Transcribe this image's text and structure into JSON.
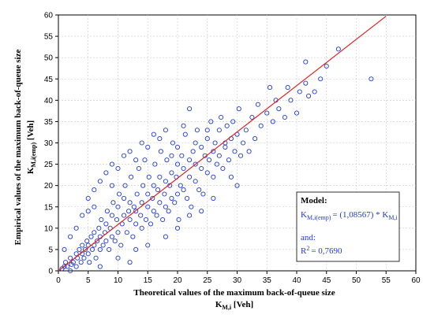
{
  "chart_data": {
    "type": "scatter",
    "xlabel": "Theoretical values of the maximum back-of-queue size",
    "xlabel_symbol": "K",
    "xlabel_subscript": "M,i",
    "xlabel_unit": "[Veh]",
    "ylabel": "Empirical values of the maximum back-of-queue size",
    "ylabel_symbol": "K",
    "ylabel_subscript": "M,i(emp)",
    "ylabel_unit": "[Veh]",
    "xlim": [
      0,
      60
    ],
    "ylim": [
      0,
      60
    ],
    "x_ticks": [
      "0",
      "5",
      "10",
      "15",
      "20",
      "25",
      "30",
      "35",
      "40",
      "45",
      "50",
      "55",
      "60"
    ],
    "y_ticks": [
      "0",
      "5",
      "10",
      "15",
      "20",
      "25",
      "30",
      "35",
      "40",
      "45",
      "50",
      "55",
      "60"
    ],
    "grid": true,
    "marker_color": "#1f3bd6",
    "fit_line_color": "#e02020",
    "fit_line": {
      "slope": 1.08567,
      "x": [
        0,
        55
      ]
    },
    "points": [
      [
        0.6,
        0.5
      ],
      [
        1,
        1
      ],
      [
        1.2,
        2
      ],
      [
        1.5,
        1
      ],
      [
        2,
        0
      ],
      [
        2,
        3
      ],
      [
        2.2,
        1.5
      ],
      [
        2.5,
        2
      ],
      [
        3,
        4
      ],
      [
        3,
        1
      ],
      [
        3.2,
        3
      ],
      [
        3.5,
        5
      ],
      [
        3.8,
        2
      ],
      [
        4,
        4
      ],
      [
        4,
        6
      ],
      [
        4.3,
        3
      ],
      [
        4.5,
        5
      ],
      [
        4.8,
        7
      ],
      [
        5,
        4
      ],
      [
        5,
        6
      ],
      [
        5.2,
        2
      ],
      [
        5.5,
        8
      ],
      [
        5.7,
        5
      ],
      [
        6,
        6
      ],
      [
        6,
        9
      ],
      [
        6.3,
        3
      ],
      [
        6.5,
        7
      ],
      [
        6.8,
        10
      ],
      [
        7,
        5
      ],
      [
        7,
        8
      ],
      [
        7.2,
        12
      ],
      [
        7.5,
        6
      ],
      [
        7.8,
        9
      ],
      [
        8,
        7
      ],
      [
        8,
        11
      ],
      [
        8.2,
        14
      ],
      [
        8.5,
        5
      ],
      [
        8.7,
        10
      ],
      [
        9,
        8
      ],
      [
        9,
        13
      ],
      [
        9.2,
        16
      ],
      [
        9.5,
        7
      ],
      [
        9.8,
        12
      ],
      [
        10,
        9
      ],
      [
        10,
        15
      ],
      [
        10.2,
        18
      ],
      [
        10.5,
        6
      ],
      [
        10.7,
        11
      ],
      [
        11,
        13
      ],
      [
        11,
        17
      ],
      [
        11.2,
        20
      ],
      [
        11.5,
        9
      ],
      [
        11.8,
        14
      ],
      [
        12,
        12
      ],
      [
        12,
        16
      ],
      [
        12.2,
        22
      ],
      [
        12.5,
        8
      ],
      [
        12.7,
        15
      ],
      [
        13,
        11
      ],
      [
        13,
        14
      ],
      [
        13.2,
        18
      ],
      [
        13.5,
        24
      ],
      [
        13.8,
        13
      ],
      [
        14,
        10
      ],
      [
        14,
        16
      ],
      [
        14.2,
        20
      ],
      [
        14.5,
        26
      ],
      [
        14.7,
        12
      ],
      [
        15,
        15
      ],
      [
        15,
        18
      ],
      [
        15.2,
        22
      ],
      [
        15.5,
        11
      ],
      [
        15.8,
        17
      ],
      [
        16,
        14
      ],
      [
        16,
        20
      ],
      [
        16.2,
        25
      ],
      [
        16.5,
        13
      ],
      [
        16.7,
        19
      ],
      [
        17,
        16
      ],
      [
        17,
        22
      ],
      [
        17.2,
        28
      ],
      [
        17.5,
        12
      ],
      [
        17.8,
        18
      ],
      [
        18,
        15
      ],
      [
        18,
        21
      ],
      [
        18.2,
        26
      ],
      [
        18.5,
        14
      ],
      [
        18.7,
        20
      ],
      [
        19,
        17
      ],
      [
        19,
        23
      ],
      [
        19.2,
        30
      ],
      [
        19.5,
        16
      ],
      [
        19.8,
        22
      ],
      [
        20,
        18
      ],
      [
        20,
        25
      ],
      [
        20.2,
        12
      ],
      [
        20.5,
        20
      ],
      [
        20.7,
        27
      ],
      [
        21,
        19
      ],
      [
        21,
        24
      ],
      [
        21.3,
        32
      ],
      [
        21.6,
        17
      ],
      [
        22,
        22
      ],
      [
        22,
        26
      ],
      [
        22.3,
        15
      ],
      [
        22.6,
        28
      ],
      [
        23,
        21
      ],
      [
        23,
        25
      ],
      [
        23.3,
        33
      ],
      [
        23.6,
        19
      ],
      [
        24,
        24
      ],
      [
        24,
        29
      ],
      [
        24.3,
        18
      ],
      [
        24.6,
        27
      ],
      [
        25,
        23
      ],
      [
        25,
        31
      ],
      [
        25.3,
        26
      ],
      [
        25.6,
        35
      ],
      [
        26,
        22
      ],
      [
        26,
        28
      ],
      [
        26.3,
        30
      ],
      [
        26.6,
        25
      ],
      [
        27,
        33
      ],
      [
        27,
        27
      ],
      [
        27.3,
        36
      ],
      [
        27.6,
        24
      ],
      [
        28,
        30
      ],
      [
        28,
        29
      ],
      [
        28.3,
        34
      ],
      [
        28.6,
        26
      ],
      [
        29,
        31
      ],
      [
        29,
        22
      ],
      [
        29.3,
        35
      ],
      [
        29.6,
        28
      ],
      [
        30,
        32
      ],
      [
        30,
        20
      ],
      [
        30.3,
        38
      ],
      [
        30.6,
        27
      ],
      [
        31,
        30
      ],
      [
        31.5,
        33
      ],
      [
        32,
        28
      ],
      [
        32.5,
        36
      ],
      [
        33,
        31
      ],
      [
        33.5,
        39
      ],
      [
        34,
        34
      ],
      [
        35,
        37
      ],
      [
        35.5,
        43
      ],
      [
        36,
        35
      ],
      [
        36.5,
        40
      ],
      [
        37,
        38
      ],
      [
        38,
        36
      ],
      [
        38.5,
        43
      ],
      [
        39,
        40
      ],
      [
        40,
        37
      ],
      [
        40.5,
        42
      ],
      [
        41.5,
        44
      ],
      [
        41.5,
        49
      ],
      [
        42,
        41
      ],
      [
        43,
        42
      ],
      [
        44,
        45
      ],
      [
        45,
        48
      ],
      [
        47,
        52
      ],
      [
        52.5,
        45
      ],
      [
        4,
        13
      ],
      [
        5,
        17
      ],
      [
        6,
        19
      ],
      [
        7,
        21
      ],
      [
        8,
        23
      ],
      [
        9,
        25
      ],
      [
        11,
        27
      ],
      [
        12,
        28
      ],
      [
        14,
        30
      ],
      [
        16,
        32
      ],
      [
        18,
        33
      ],
      [
        20,
        29
      ],
      [
        22,
        38
      ],
      [
        12,
        2
      ],
      [
        15,
        6
      ],
      [
        18,
        8
      ],
      [
        20,
        10
      ],
      [
        22,
        13
      ],
      [
        24,
        14
      ],
      [
        26,
        17
      ],
      [
        7,
        1
      ],
      [
        10,
        3
      ],
      [
        13,
        5
      ],
      [
        1,
        5
      ],
      [
        2,
        8
      ],
      [
        3,
        10
      ],
      [
        5,
        14
      ],
      [
        6,
        15
      ],
      [
        9,
        20
      ],
      [
        10,
        24
      ],
      [
        13,
        26
      ],
      [
        15,
        29
      ],
      [
        17,
        31
      ],
      [
        19,
        27
      ],
      [
        21,
        34
      ],
      [
        23,
        30
      ],
      [
        25,
        33
      ]
    ],
    "legend": {
      "heading": "Model:",
      "formula_prefix": "K",
      "formula_sub1": "M,i(emp)",
      "formula_middle": "= (1,08567) * K",
      "formula_sub2": "M,i",
      "and_label": "and:",
      "r2_prefix": "R",
      "r2_sup": "2",
      "r2_value": "= 0,7690"
    }
  }
}
